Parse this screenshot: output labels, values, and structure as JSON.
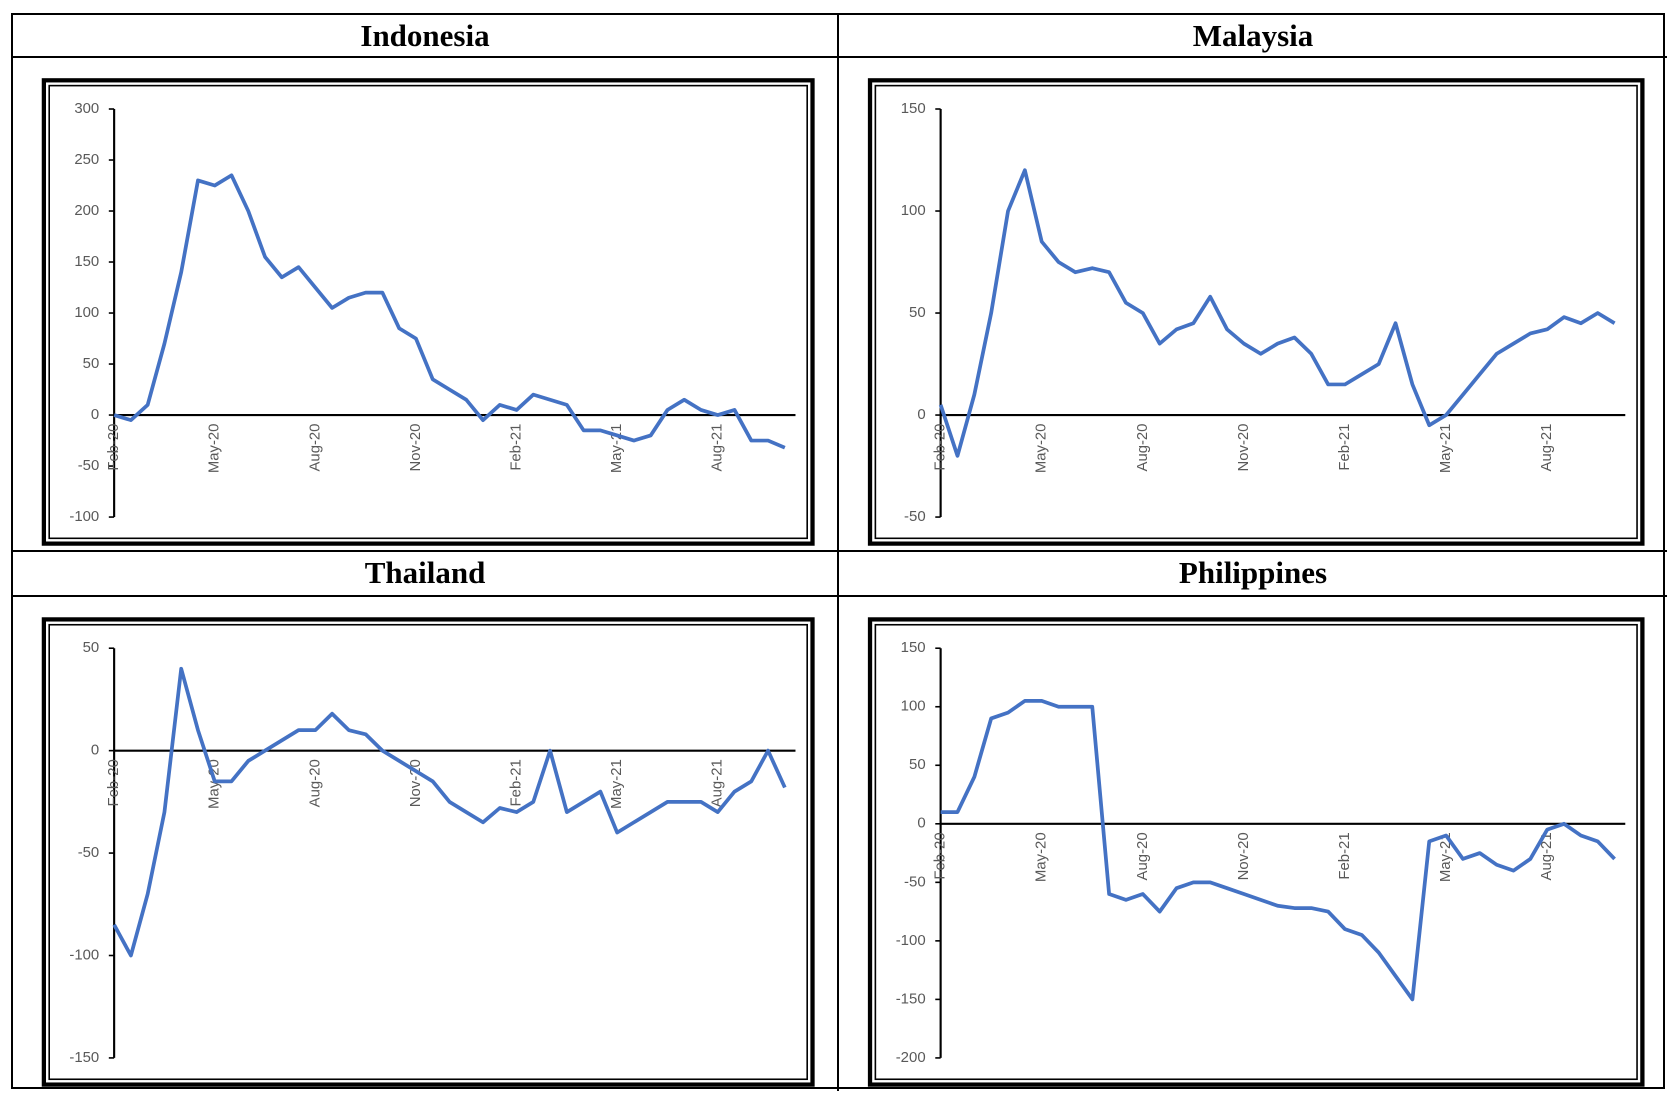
{
  "chart_data": [
    {
      "type": "line",
      "title": "Indonesia",
      "color": "#4472c4",
      "x": [
        "Feb-20",
        null,
        null,
        null,
        null,
        null,
        "May-20",
        null,
        null,
        null,
        null,
        null,
        "Aug-20",
        null,
        null,
        null,
        null,
        null,
        "Nov-20",
        null,
        null,
        null,
        null,
        null,
        "Feb-21",
        null,
        null,
        null,
        null,
        null,
        "May-21",
        null,
        null,
        null,
        null,
        null,
        "Aug-21",
        null,
        null,
        null,
        null
      ],
      "values": [
        0,
        -5,
        10,
        70,
        140,
        230,
        225,
        235,
        200,
        155,
        135,
        145,
        125,
        105,
        115,
        120,
        120,
        85,
        75,
        35,
        25,
        15,
        -5,
        10,
        5,
        20,
        15,
        10,
        -15,
        -15,
        -20,
        -25,
        -20,
        5,
        15,
        5,
        0,
        5,
        -25,
        -25,
        -32
      ],
      "ylim": [
        -100,
        300
      ],
      "yticks": [
        -100,
        -50,
        0,
        50,
        100,
        150,
        200,
        250,
        300
      ]
    },
    {
      "type": "line",
      "title": "Malaysia",
      "color": "#4472c4",
      "x": [
        "Feb-20",
        null,
        null,
        null,
        null,
        null,
        "May-20",
        null,
        null,
        null,
        null,
        null,
        "Aug-20",
        null,
        null,
        null,
        null,
        null,
        "Nov-20",
        null,
        null,
        null,
        null,
        null,
        "Feb-21",
        null,
        null,
        null,
        null,
        null,
        "May-21",
        null,
        null,
        null,
        null,
        null,
        "Aug-21",
        null,
        null,
        null,
        null
      ],
      "values": [
        5,
        -20,
        10,
        50,
        100,
        120,
        85,
        75,
        70,
        72,
        70,
        55,
        50,
        35,
        42,
        45,
        58,
        42,
        35,
        30,
        35,
        38,
        30,
        15,
        15,
        20,
        25,
        45,
        15,
        -5,
        0,
        10,
        20,
        30,
        35,
        40,
        42,
        48,
        45,
        50,
        45
      ],
      "ylim": [
        -50,
        150
      ],
      "yticks": [
        -50,
        0,
        50,
        100,
        150
      ]
    },
    {
      "type": "line",
      "title": "Thailand",
      "color": "#4472c4",
      "x": [
        "Feb-20",
        null,
        null,
        null,
        null,
        null,
        "May-20",
        null,
        null,
        null,
        null,
        null,
        "Aug-20",
        null,
        null,
        null,
        null,
        null,
        "Nov-20",
        null,
        null,
        null,
        null,
        null,
        "Feb-21",
        null,
        null,
        null,
        null,
        null,
        "May-21",
        null,
        null,
        null,
        null,
        null,
        "Aug-21",
        null,
        null,
        null,
        null
      ],
      "values": [
        -85,
        -100,
        -70,
        -30,
        40,
        10,
        -15,
        -15,
        -5,
        0,
        5,
        10,
        10,
        18,
        10,
        8,
        0,
        -5,
        -10,
        -15,
        -25,
        -30,
        -35,
        -28,
        -30,
        -25,
        0,
        -30,
        -25,
        -20,
        -40,
        -35,
        -30,
        -25,
        -25,
        -25,
        -30,
        -20,
        -15,
        0,
        -18
      ],
      "ylim": [
        -150,
        50
      ],
      "yticks": [
        -150,
        -100,
        -50,
        0,
        50
      ]
    },
    {
      "type": "line",
      "title": "Philippines",
      "color": "#4472c4",
      "x": [
        "Feb-20",
        null,
        null,
        null,
        null,
        null,
        "May-20",
        null,
        null,
        null,
        null,
        null,
        "Aug-20",
        null,
        null,
        null,
        null,
        null,
        "Nov-20",
        null,
        null,
        null,
        null,
        null,
        "Feb-21",
        null,
        null,
        null,
        null,
        null,
        "May-21",
        null,
        null,
        null,
        null,
        null,
        "Aug-21",
        null,
        null,
        null,
        null
      ],
      "values": [
        10,
        10,
        40,
        90,
        95,
        105,
        105,
        100,
        100,
        100,
        -60,
        -65,
        -60,
        -75,
        -55,
        -50,
        -50,
        -55,
        -60,
        -65,
        -70,
        -72,
        -72,
        -75,
        -90,
        -95,
        -110,
        -130,
        -150,
        -15,
        -10,
        -30,
        -25,
        -35,
        -40,
        -30,
        -5,
        0,
        -10,
        -15,
        -30
      ],
      "ylim": [
        -200,
        150
      ],
      "yticks": [
        -200,
        -150,
        -100,
        -50,
        0,
        50,
        100,
        150
      ]
    }
  ]
}
